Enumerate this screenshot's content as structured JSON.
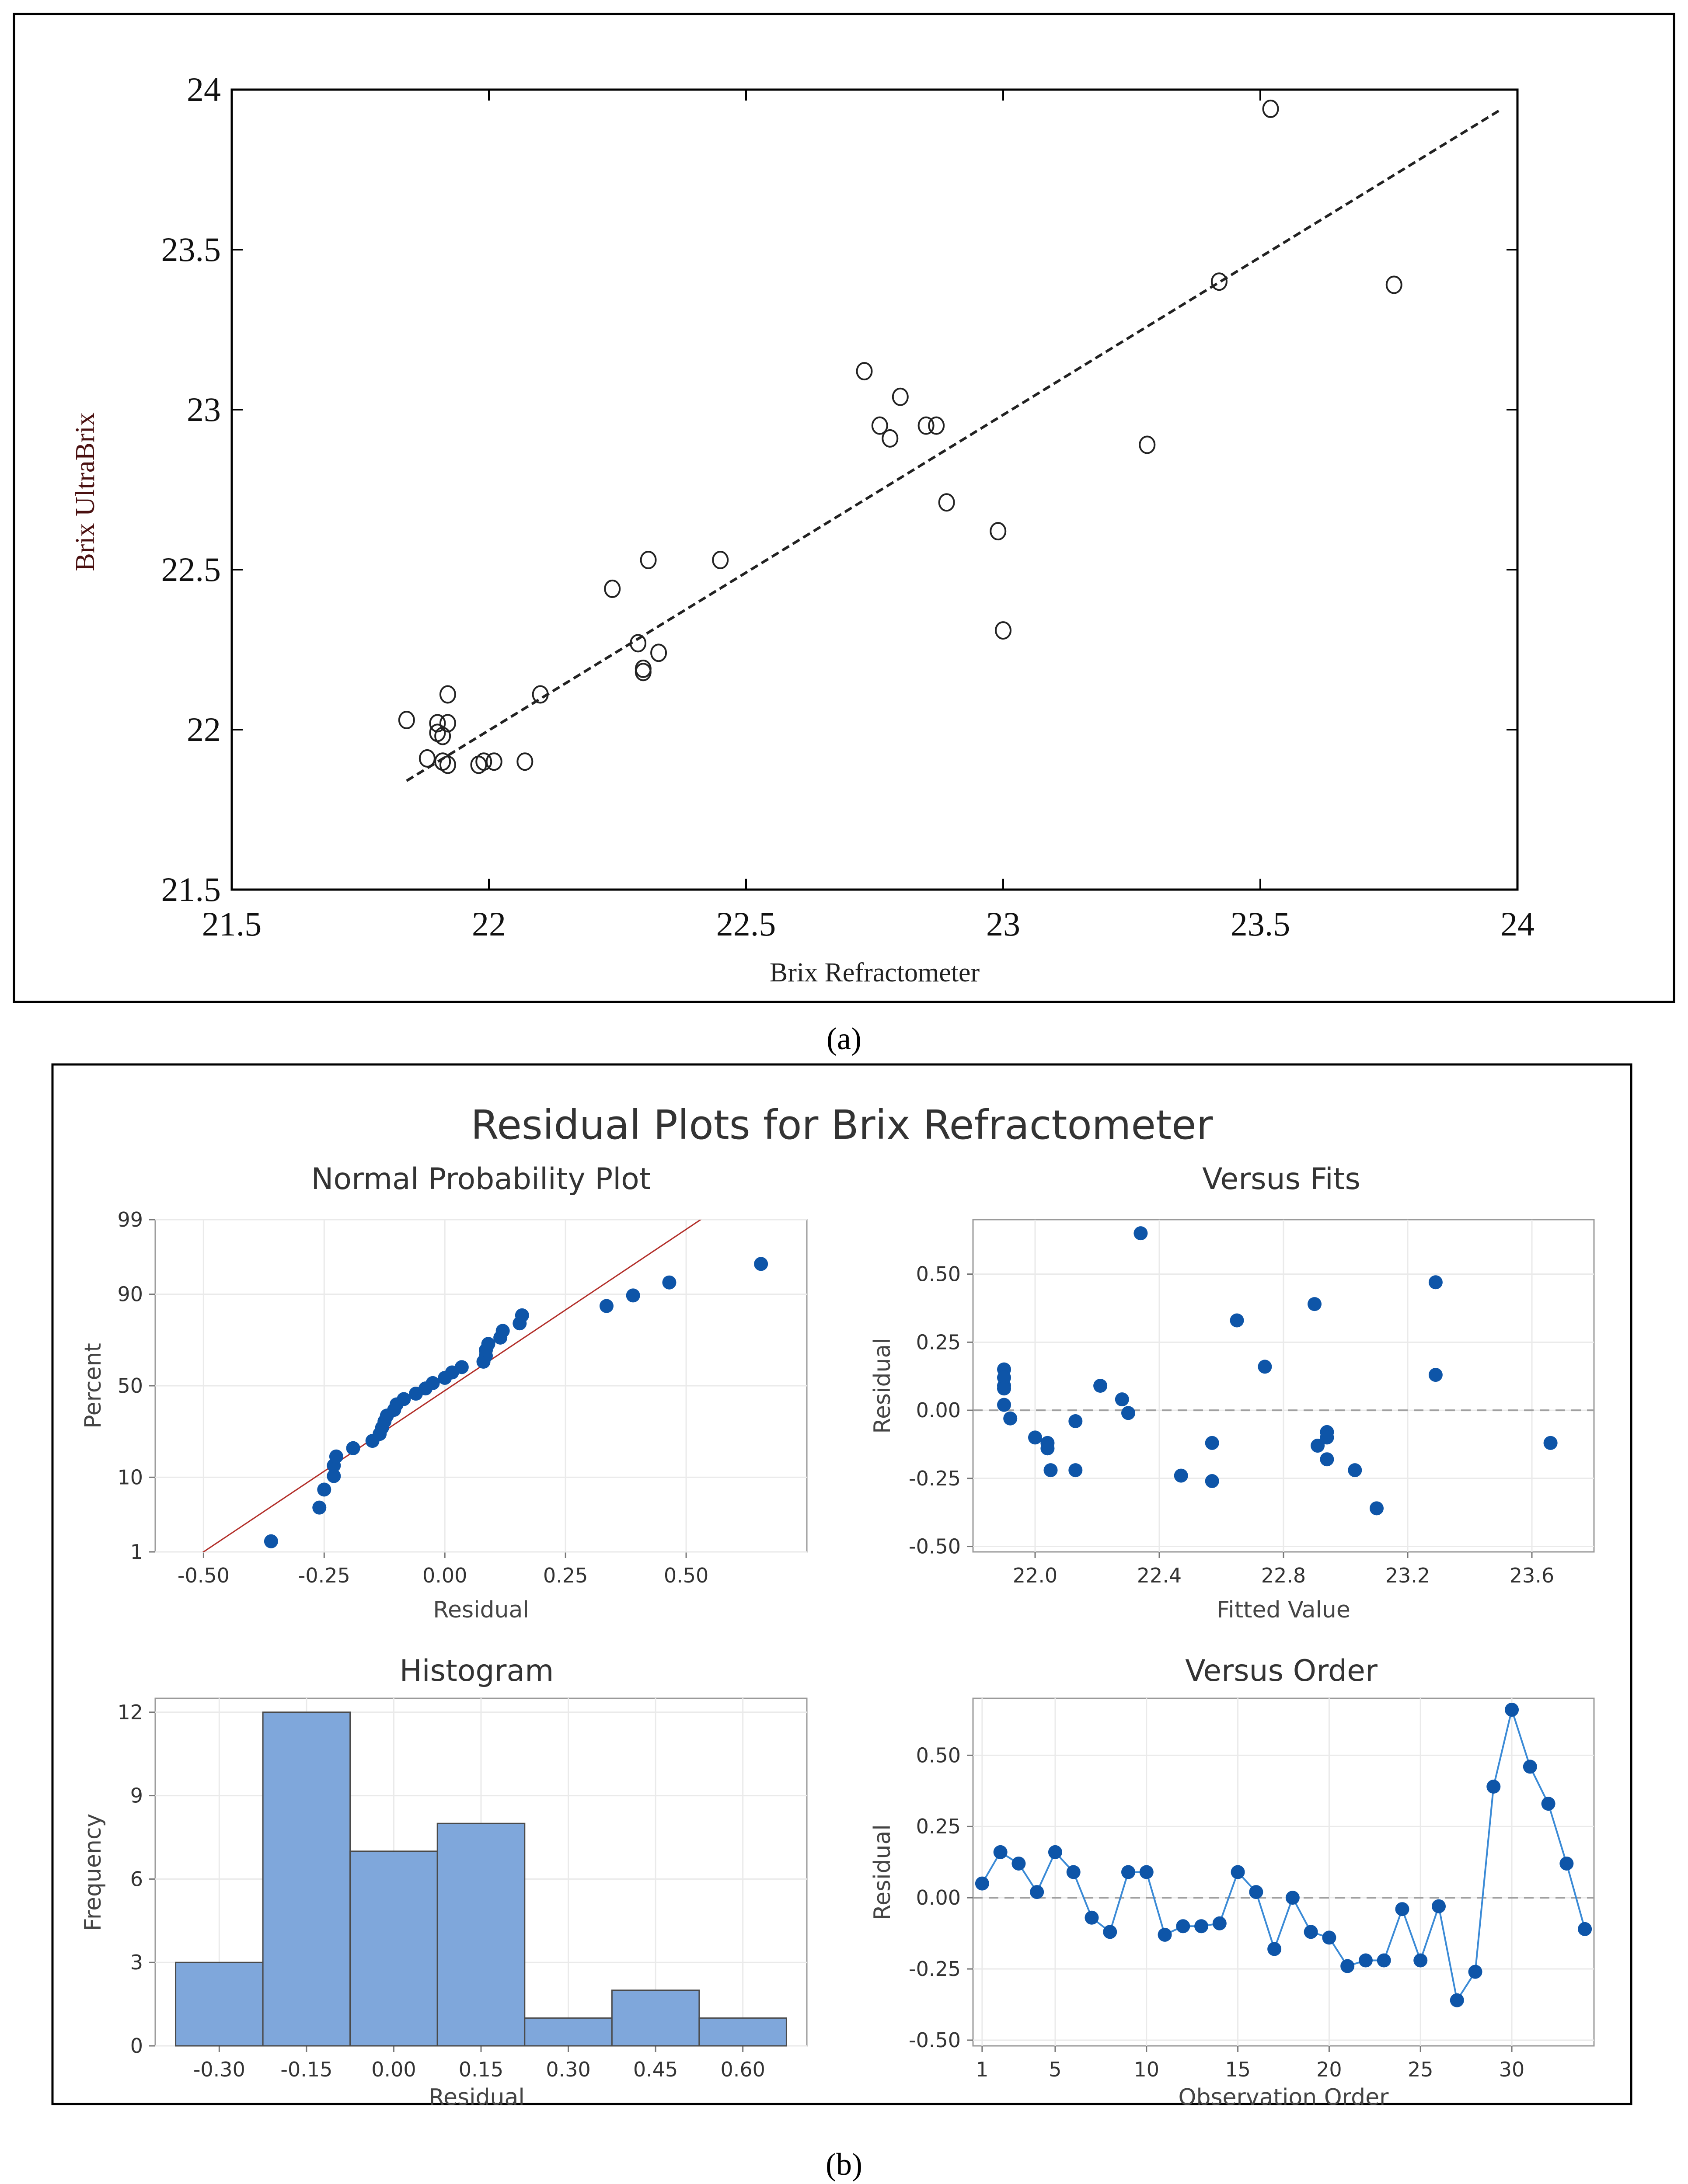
{
  "colors": {
    "point_blue": "#0e55a8",
    "line_blue": "#3a8ad6",
    "hist_fill": "#7fa7db",
    "ref_red": "#b3302b",
    "dash_gray": "#a0a0a0",
    "grid_gray": "#eaeaea"
  },
  "panel_a": {
    "caption": "(a)",
    "chart_data": {
      "type": "scatter",
      "title": "",
      "xlabel": "Brix Refractometer",
      "ylabel": "Brix UltraBrix",
      "xlim": [
        21.5,
        24
      ],
      "ylim": [
        21.5,
        24
      ],
      "xticks": [
        "21.5",
        "22",
        "22.5",
        "23",
        "23.5",
        "24"
      ],
      "yticks": [
        "21.5",
        "22",
        "22.5",
        "23",
        "23.5",
        "24"
      ],
      "fit_line": {
        "x": [
          21.84,
          23.97
        ],
        "y": [
          21.84,
          23.94
        ]
      },
      "points": [
        [
          21.84,
          22.03
        ],
        [
          21.88,
          21.91
        ],
        [
          21.9,
          22.02
        ],
        [
          21.9,
          21.99
        ],
        [
          21.91,
          21.98
        ],
        [
          21.92,
          22.11
        ],
        [
          21.92,
          22.02
        ],
        [
          21.91,
          21.9
        ],
        [
          21.92,
          21.89
        ],
        [
          21.98,
          21.89
        ],
        [
          21.99,
          21.9
        ],
        [
          22.01,
          21.9
        ],
        [
          22.07,
          21.9
        ],
        [
          22.1,
          22.11
        ],
        [
          22.24,
          22.44
        ],
        [
          22.29,
          22.27
        ],
        [
          22.3,
          22.18
        ],
        [
          22.3,
          22.19
        ],
        [
          22.31,
          22.53
        ],
        [
          22.33,
          22.24
        ],
        [
          22.45,
          22.53
        ],
        [
          22.73,
          23.12
        ],
        [
          22.76,
          22.95
        ],
        [
          22.78,
          22.91
        ],
        [
          22.8,
          23.04
        ],
        [
          22.85,
          22.95
        ],
        [
          22.87,
          22.95
        ],
        [
          22.89,
          22.71
        ],
        [
          22.99,
          22.62
        ],
        [
          23.0,
          22.31
        ],
        [
          23.28,
          22.89
        ],
        [
          23.42,
          23.4
        ],
        [
          23.52,
          23.94
        ],
        [
          23.76,
          23.39
        ]
      ]
    }
  },
  "panel_b": {
    "caption": "(b)",
    "title": "Residual Plots for Brix Refractometer",
    "npp": {
      "chart_data": {
        "type": "scatter",
        "title": "Normal Probability Plot",
        "xlabel": "Residual",
        "ylabel": "Percent",
        "xlim": [
          -0.6,
          0.75
        ],
        "xticks": [
          "-0.50",
          "-0.25",
          "0.00",
          "0.25",
          "0.50"
        ],
        "xtick_values": [
          -0.5,
          -0.25,
          0,
          0.25,
          0.5
        ],
        "yticks": [
          "1",
          "10",
          "50",
          "90",
          "99"
        ],
        "ytick_values": [
          1,
          10,
          50,
          90,
          99
        ],
        "ref_line": {
          "x": [
            -0.5,
            0.53
          ],
          "percent": [
            1,
            99
          ]
        },
        "points": [
          [
            -0.36,
            1.47
          ],
          [
            -0.26,
            4.4
          ],
          [
            -0.25,
            7.3
          ],
          [
            -0.23,
            10.3
          ],
          [
            -0.23,
            13.2
          ],
          [
            -0.225,
            16.1
          ],
          [
            -0.19,
            19.1
          ],
          [
            -0.15,
            22.0
          ],
          [
            -0.135,
            25.0
          ],
          [
            -0.13,
            27.9
          ],
          [
            -0.125,
            30.9
          ],
          [
            -0.12,
            33.8
          ],
          [
            -0.105,
            36.8
          ],
          [
            -0.1,
            39.7
          ],
          [
            -0.085,
            42.6
          ],
          [
            -0.06,
            45.6
          ],
          [
            -0.04,
            48.5
          ],
          [
            -0.025,
            51.5
          ],
          [
            0.0,
            54.4
          ],
          [
            0.015,
            57.4
          ],
          [
            0.035,
            60.3
          ],
          [
            0.08,
            63.2
          ],
          [
            0.085,
            66.2
          ],
          [
            0.085,
            69.1
          ],
          [
            0.09,
            72.1
          ],
          [
            0.115,
            75.0
          ],
          [
            0.12,
            77.9
          ],
          [
            0.155,
            80.9
          ],
          [
            0.16,
            83.8
          ],
          [
            0.335,
            86.8
          ],
          [
            0.39,
            89.7
          ],
          [
            0.465,
            92.6
          ],
          [
            0.655,
            95.6
          ]
        ]
      }
    },
    "fits": {
      "chart_data": {
        "type": "scatter",
        "title": "Versus Fits",
        "xlabel": "Fitted Value",
        "ylabel": "Residual",
        "xlim": [
          21.8,
          23.8
        ],
        "ylim": [
          -0.52,
          0.7
        ],
        "xticks": [
          "22.0",
          "22.4",
          "22.8",
          "23.2",
          "23.6"
        ],
        "xtick_values": [
          22.0,
          22.4,
          22.8,
          23.2,
          23.6
        ],
        "yticks": [
          "0.50",
          "0.25",
          "0.00",
          "-0.25",
          "-0.50"
        ],
        "ytick_values": [
          0.5,
          0.25,
          0.0,
          -0.25,
          -0.5
        ],
        "points": [
          [
            21.9,
            0.15
          ],
          [
            21.9,
            0.12
          ],
          [
            21.9,
            0.09
          ],
          [
            21.9,
            0.08
          ],
          [
            21.9,
            0.02
          ],
          [
            21.92,
            -0.03
          ],
          [
            22.0,
            -0.1
          ],
          [
            22.04,
            -0.12
          ],
          [
            22.04,
            -0.14
          ],
          [
            22.05,
            -0.22
          ],
          [
            22.13,
            -0.04
          ],
          [
            22.13,
            -0.22
          ],
          [
            22.21,
            0.09
          ],
          [
            22.28,
            0.04
          ],
          [
            22.3,
            -0.01
          ],
          [
            22.34,
            0.65
          ],
          [
            22.47,
            -0.24
          ],
          [
            22.57,
            -0.12
          ],
          [
            22.57,
            -0.26
          ],
          [
            22.65,
            0.33
          ],
          [
            22.74,
            0.16
          ],
          [
            22.9,
            0.39
          ],
          [
            22.91,
            -0.13
          ],
          [
            22.94,
            -0.08
          ],
          [
            22.94,
            -0.1
          ],
          [
            22.94,
            -0.18
          ],
          [
            23.03,
            -0.22
          ],
          [
            23.1,
            -0.36
          ],
          [
            23.29,
            0.47
          ],
          [
            23.29,
            0.13
          ],
          [
            23.66,
            -0.12
          ]
        ]
      }
    },
    "hist": {
      "chart_data": {
        "type": "bar",
        "title": "Histogram",
        "xlabel": "Residual",
        "ylabel": "Frequency",
        "bin_edges": [
          -0.375,
          -0.225,
          -0.075,
          0.075,
          0.225,
          0.375,
          0.525,
          0.675
        ],
        "values": [
          3,
          12,
          7,
          8,
          1,
          2,
          1
        ],
        "xlim": [
          -0.41,
          0.71
        ],
        "ylim": [
          0,
          12.5
        ],
        "xticks": [
          "-0.30",
          "-0.15",
          "0.00",
          "0.15",
          "0.30",
          "0.45",
          "0.60"
        ],
        "xtick_values": [
          -0.3,
          -0.15,
          0.0,
          0.15,
          0.3,
          0.45,
          0.6
        ],
        "yticks": [
          "12",
          "9",
          "6",
          "3",
          "0"
        ],
        "ytick_values": [
          12,
          9,
          6,
          3,
          0
        ]
      }
    },
    "order": {
      "chart_data": {
        "type": "line",
        "title": "Versus Order",
        "xlabel": "Observation Order",
        "ylabel": "Residual",
        "xlim": [
          0.5,
          34.5
        ],
        "ylim": [
          -0.52,
          0.7
        ],
        "xticks": [
          "1",
          "5",
          "10",
          "15",
          "20",
          "25",
          "30"
        ],
        "xtick_values": [
          1,
          5,
          10,
          15,
          20,
          25,
          30
        ],
        "yticks": [
          "0.50",
          "0.25",
          "0.00",
          "-0.25",
          "-0.50"
        ],
        "ytick_values": [
          0.5,
          0.25,
          0.0,
          -0.25,
          -0.5
        ],
        "x": [
          1,
          2,
          3,
          4,
          5,
          6,
          7,
          8,
          9,
          10,
          11,
          12,
          13,
          14,
          15,
          16,
          17,
          18,
          19,
          20,
          21,
          22,
          23,
          24,
          25,
          26,
          27,
          28,
          29,
          30,
          31,
          32,
          33,
          34
        ],
        "values": [
          0.05,
          0.16,
          0.12,
          0.02,
          0.16,
          0.09,
          -0.07,
          -0.12,
          0.09,
          0.09,
          -0.13,
          -0.1,
          -0.1,
          -0.09,
          0.09,
          0.02,
          -0.18,
          0.0,
          -0.12,
          -0.14,
          -0.24,
          -0.22,
          -0.22,
          -0.04,
          -0.22,
          -0.03,
          -0.36,
          -0.26,
          0.39,
          0.66,
          0.46,
          0.33,
          0.12,
          -0.11
        ]
      }
    }
  }
}
